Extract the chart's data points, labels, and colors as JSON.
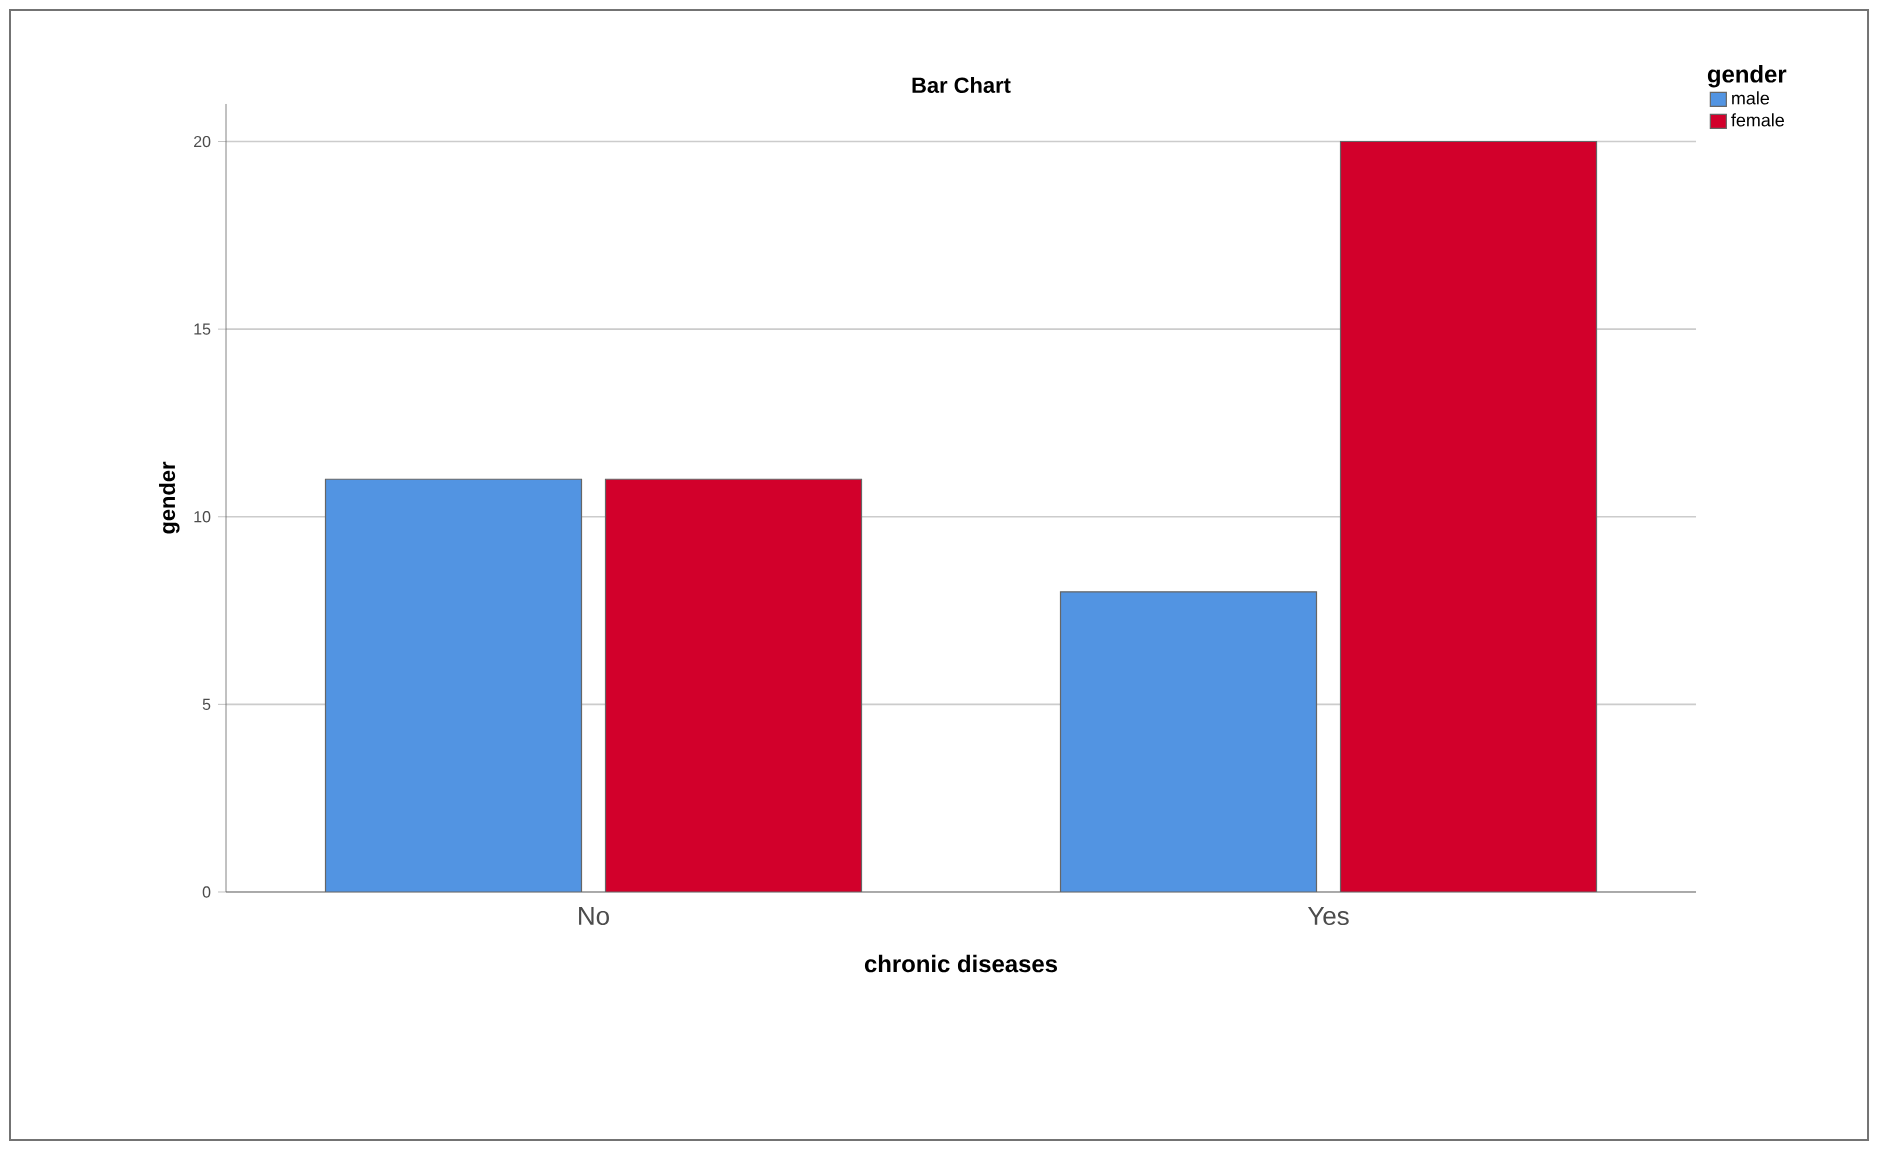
{
  "chart_data": {
    "type": "bar",
    "title": "Bar Chart",
    "xlabel": "chronic diseases",
    "ylabel": "gender",
    "legend_title": "gender",
    "categories": [
      "No",
      "Yes"
    ],
    "series": [
      {
        "name": "male",
        "color": "#5294e2",
        "values": [
          11,
          8
        ]
      },
      {
        "name": "female",
        "color": "#d2002b",
        "values": [
          11,
          20
        ]
      }
    ],
    "ylim": [
      0,
      21
    ],
    "yticks": [
      0,
      5,
      10,
      15,
      20
    ],
    "grid": "y",
    "legend": "top right"
  }
}
